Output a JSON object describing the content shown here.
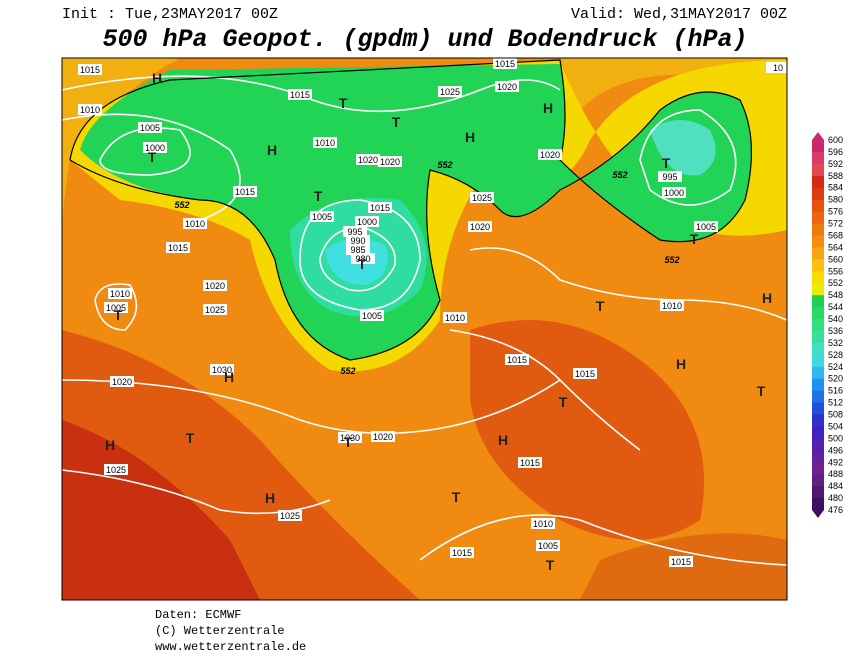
{
  "header": {
    "init": "Init : Tue,23MAY2017 00Z",
    "valid": "Valid: Wed,31MAY2017 00Z",
    "title": "500 hPa Geopot. (gpdm) und Bodendruck (hPa)"
  },
  "map": {
    "isobar_labels": [
      1015,
      1010,
      1005,
      1000,
      1015,
      1015,
      1010,
      1020,
      1020,
      1005,
      1000,
      995,
      990,
      985,
      980,
      1015,
      1005,
      1010,
      1015,
      1015,
      1020,
      1025,
      1020,
      1025,
      1020,
      995,
      1000,
      1005,
      1010,
      1015,
      1010,
      1020,
      1025,
      1010,
      1005,
      1020,
      1030,
      1025,
      1025,
      1030,
      1020,
      1015,
      1015,
      1010,
      1005,
      1015,
      1015,
      10
    ],
    "height_labels": [
      552,
      552,
      552,
      552,
      552
    ],
    "centers": [
      "H",
      "T",
      "T",
      "H",
      "H",
      "H",
      "T",
      "T",
      "T",
      "T",
      "T",
      "T",
      "H",
      "T",
      "H",
      "H",
      "T",
      "T",
      "H",
      "T",
      "T",
      "H",
      "H",
      "T",
      "T"
    ]
  },
  "colorbar": {
    "labels": [
      600,
      596,
      592,
      588,
      584,
      580,
      576,
      572,
      568,
      564,
      560,
      556,
      552,
      548,
      544,
      540,
      536,
      532,
      528,
      524,
      520,
      516,
      512,
      508,
      504,
      500,
      496,
      492,
      488,
      484,
      480,
      476
    ]
  },
  "footer": [
    "Daten: ECMWF",
    "(C) Wetterzentrale",
    "www.wetterzentrale.de"
  ]
}
